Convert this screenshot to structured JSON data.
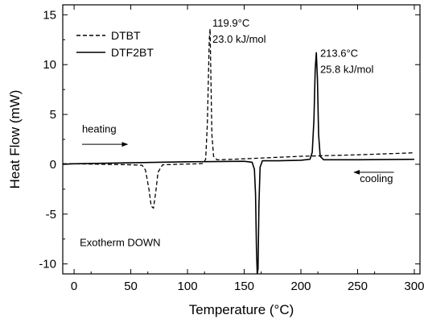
{
  "chart_data": {
    "type": "line",
    "xlabel": "Temperature (°C)",
    "ylabel": "Heat Flow (mW)",
    "xlim": [
      -10,
      305
    ],
    "ylim": [
      -11,
      16
    ],
    "xticks": [
      0,
      50,
      100,
      150,
      200,
      250,
      300
    ],
    "yticks": [
      -10,
      -5,
      0,
      5,
      10,
      15
    ],
    "grid": false,
    "legend_position": "top-left",
    "series": [
      {
        "name": "DTBT",
        "style": "dashed",
        "color": "#000000",
        "x": [
          -10,
          0,
          50,
          60,
          63,
          66,
          68,
          70,
          72,
          74,
          78,
          90,
          110,
          114,
          116,
          117.5,
          118.5,
          119.2,
          119.9,
          120.6,
          121.5,
          123,
          126,
          140,
          200,
          250,
          300
        ],
        "y": [
          0.05,
          0.05,
          -0.05,
          -0.1,
          -0.6,
          -2.5,
          -4.2,
          -4.4,
          -2.8,
          -0.8,
          -0.05,
          0.0,
          0.05,
          0.1,
          0.5,
          4.0,
          9.0,
          12.5,
          13.6,
          9.0,
          3.0,
          0.8,
          0.45,
          0.5,
          0.8,
          0.95,
          1.15
        ]
      },
      {
        "name": "DTF2BT",
        "style": "solid",
        "color": "#000000",
        "x": [
          -10,
          0,
          50,
          100,
          150,
          157,
          159,
          160,
          160.8,
          161.5,
          162.2,
          163,
          164,
          166,
          180,
          200,
          208,
          210,
          211.5,
          212.6,
          213.6,
          214.6,
          215.6,
          217,
          220,
          250,
          300
        ],
        "y": [
          0.0,
          0.05,
          0.15,
          0.25,
          0.3,
          0.2,
          -0.5,
          -3.0,
          -8.5,
          -11.0,
          -10.5,
          -4.0,
          -0.3,
          0.35,
          0.35,
          0.4,
          0.5,
          1.2,
          4.5,
          9.5,
          11.2,
          8.5,
          3.0,
          0.8,
          0.45,
          0.45,
          0.5
        ]
      }
    ],
    "annotations": [
      {
        "line1": "119.9°C",
        "line2": "23.0 kJ/mol",
        "x": 122,
        "y": 13.8
      },
      {
        "line1": "213.6°C",
        "line2": "25.8 kJ/mol",
        "x": 217,
        "y": 10.8
      },
      {
        "text": "heating",
        "x": 7,
        "y": 3.2
      },
      {
        "text": "cooling",
        "x": 252,
        "y": -1.8
      },
      {
        "text": "Exotherm DOWN",
        "x": 5,
        "y": -8.2
      }
    ],
    "arrows": [
      {
        "name": "heating-arrow",
        "from": [
          7,
          2.0
        ],
        "to": [
          47,
          2.0
        ]
      },
      {
        "name": "cooling-arrow",
        "from": [
          282,
          -0.8
        ],
        "to": [
          247,
          -0.8
        ]
      }
    ]
  }
}
